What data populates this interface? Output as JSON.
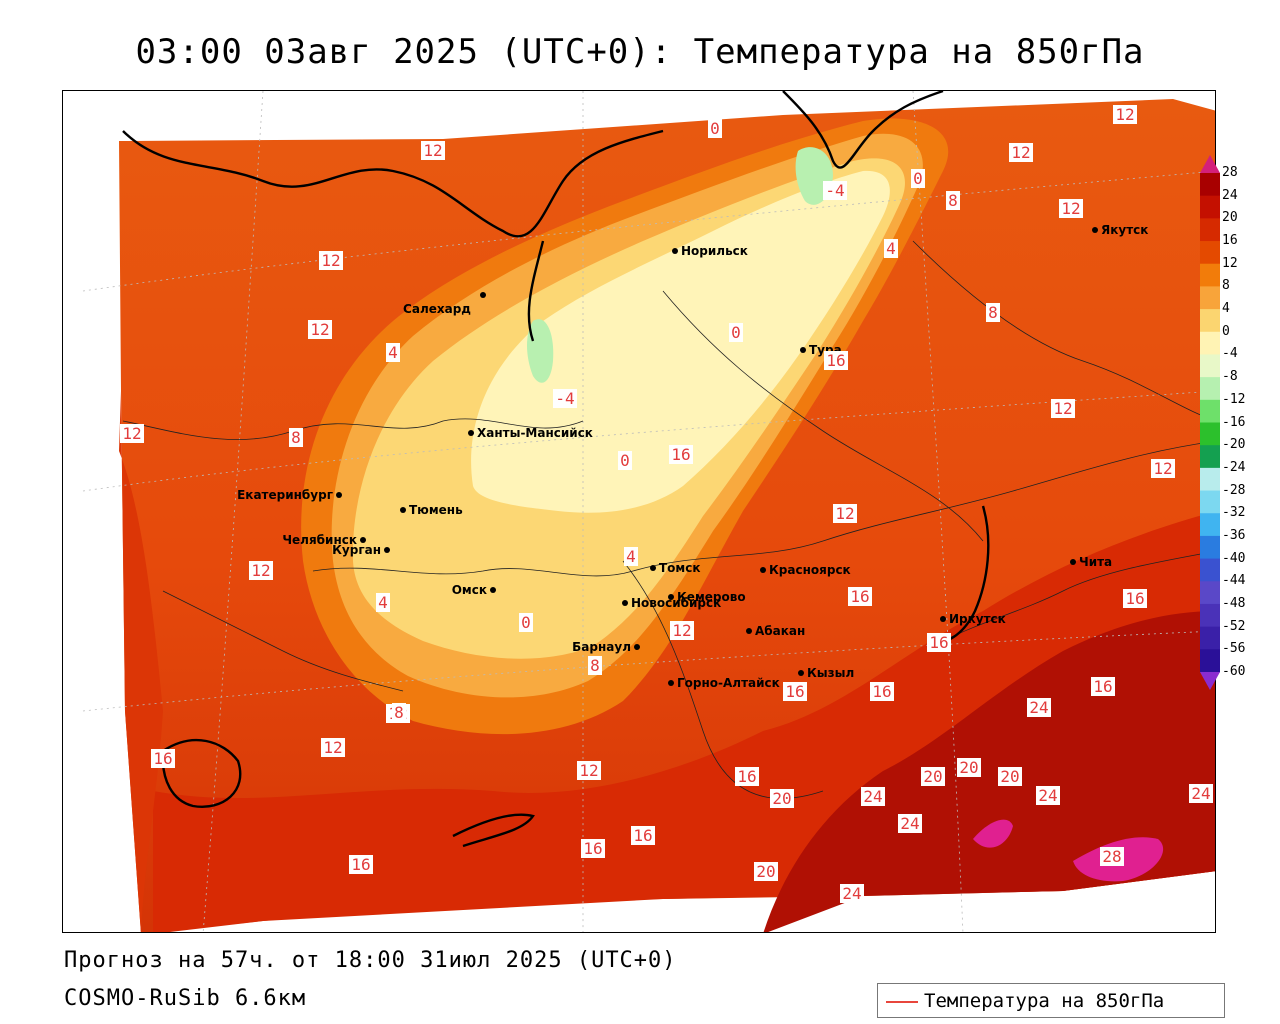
{
  "title": "03:00 03авг 2025 (UTC+0): Температура на 850гПа",
  "forecast_line": "Прогноз на 57ч. от 18:00 31июл 2025 (UTC+0)",
  "model_line": "COSMO-RuSib 6.6км",
  "legend_label": "Температура на 850гПа",
  "colorbar": {
    "ticks": [
      "28",
      "24",
      "20",
      "16",
      "12",
      "8",
      "4",
      "0",
      "-4",
      "-8",
      "-12",
      "-16",
      "-20",
      "-24",
      "-28",
      "-32",
      "-36",
      "-40",
      "-44",
      "-48",
      "-52",
      "-56",
      "-60"
    ],
    "colors": [
      "#d4207a",
      "#a80000",
      "#c41000",
      "#d62a00",
      "#e44a00",
      "#f27c0a",
      "#f8a43a",
      "#fbd570",
      "#fff3b4",
      "#e8f8c8",
      "#b6f0b0",
      "#6ee06a",
      "#2cc02c",
      "#14a050",
      "#b8ecec",
      "#7cd8f0",
      "#40b4f0",
      "#2a7ce0",
      "#3a52d0",
      "#5a48c8",
      "#4a32b8",
      "#3a20a8",
      "#2a1098",
      "#8a2cd0"
    ]
  },
  "cities": [
    {
      "name": "Норильск"
    },
    {
      "name": "Салехард"
    },
    {
      "name": "Тура"
    },
    {
      "name": "Якутск"
    },
    {
      "name": "Ханты-Мансийск"
    },
    {
      "name": "Екатеринбург"
    },
    {
      "name": "Тюмень"
    },
    {
      "name": "Челябинск"
    },
    {
      "name": "Курган"
    },
    {
      "name": "Омск"
    },
    {
      "name": "Новосибирск"
    },
    {
      "name": "Томск"
    },
    {
      "name": "Красноярск"
    },
    {
      "name": "Кемерово"
    },
    {
      "name": "Барнаул"
    },
    {
      "name": "Абакан"
    },
    {
      "name": "Горно-Алтайск"
    },
    {
      "name": "Кызыл"
    },
    {
      "name": "Иркутск"
    },
    {
      "name": "Чита"
    }
  ],
  "contour_labels": [
    "12",
    "12",
    "0",
    "-4",
    "0",
    "8",
    "12",
    "12",
    "4",
    "12",
    "12",
    "0",
    "8",
    "4",
    "8",
    "12",
    "-4",
    "16",
    "4",
    "0",
    "16",
    "8",
    "12",
    "12",
    "12",
    "4",
    "16",
    "0",
    "16",
    "12",
    "8",
    "12",
    "16",
    "16",
    "16",
    "20",
    "20",
    "12",
    "24",
    "16",
    "24",
    "12",
    "12",
    "16",
    "16",
    "20",
    "24",
    "24",
    "16",
    "16",
    "20",
    "20",
    "28",
    "16",
    "24",
    "24"
  ]
}
